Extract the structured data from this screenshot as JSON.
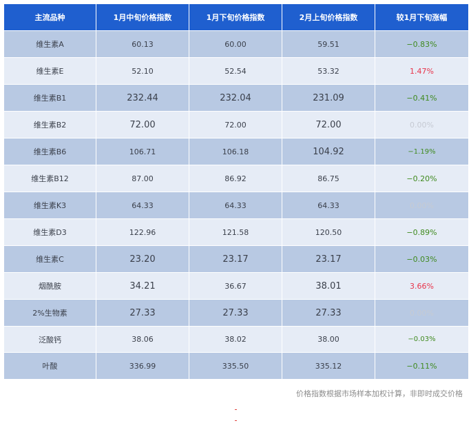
{
  "columns": [
    "主流品种",
    "1月中旬价格指数",
    "1月下旬价格指数",
    "2月上旬价格指数",
    "较1月下旬涨幅"
  ],
  "rows": [
    {
      "name": "维生素A",
      "jan_mid": "60.13",
      "jan_late": "60.00",
      "feb_early": "59.51",
      "change": "−0.83%",
      "dir": "down"
    },
    {
      "name": "维生素E",
      "jan_mid": "52.10",
      "jan_late": "52.54",
      "feb_early": "53.32",
      "change": "1.47%",
      "dir": "up"
    },
    {
      "name": "维生素B1",
      "jan_mid": "232.44",
      "jan_late": "232.04",
      "feb_early": "231.09",
      "change": "−0.41%",
      "dir": "down"
    },
    {
      "name": "维生素B2",
      "jan_mid": "72.00",
      "jan_late": "72.00",
      "feb_early": "72.00",
      "change": "0.00%",
      "dir": "flat"
    },
    {
      "name": "维生素B6",
      "jan_mid": "106.71",
      "jan_late": "106.18",
      "feb_early": "104.92",
      "change": "−1.19%",
      "dir": "down"
    },
    {
      "name": "维生素B12",
      "jan_mid": "87.00",
      "jan_late": "86.92",
      "feb_early": "86.75",
      "change": "−0.20%",
      "dir": "down"
    },
    {
      "name": "维生素K3",
      "jan_mid": "64.33",
      "jan_late": "64.33",
      "feb_early": "64.33",
      "change": "0.00%",
      "dir": "flat"
    },
    {
      "name": "维生素D3",
      "jan_mid": "122.96",
      "jan_late": "121.58",
      "feb_early": "120.50",
      "change": "−0.89%",
      "dir": "down"
    },
    {
      "name": "维生素C",
      "jan_mid": "23.20",
      "jan_late": "23.17",
      "feb_early": "23.17",
      "change": "−0.03%",
      "dir": "down"
    },
    {
      "name": "烟酰胺",
      "jan_mid": "34.21",
      "jan_late": "36.67",
      "feb_early": "38.01",
      "change": "3.66%",
      "dir": "up"
    },
    {
      "name": "2%生物素",
      "jan_mid": "27.33",
      "jan_late": "27.33",
      "feb_early": "27.33",
      "change": "0.00%",
      "dir": "flat"
    },
    {
      "name": "泛酸钙",
      "jan_mid": "38.06",
      "jan_late": "38.02",
      "feb_early": "38.00",
      "change": "−0.03%",
      "dir": "down"
    },
    {
      "name": "叶酸",
      "jan_mid": "336.99",
      "jan_late": "335.50",
      "feb_early": "335.12",
      "change": "−0.11%",
      "dir": "down"
    }
  ],
  "colors": {
    "header_bg": "#1f5fcf",
    "up": "#e8344a",
    "down": "#3f8a1e",
    "flat": "#c6cad3"
  },
  "footnote": "价格指数根据市场样本加权计算，非即时成交价格"
}
